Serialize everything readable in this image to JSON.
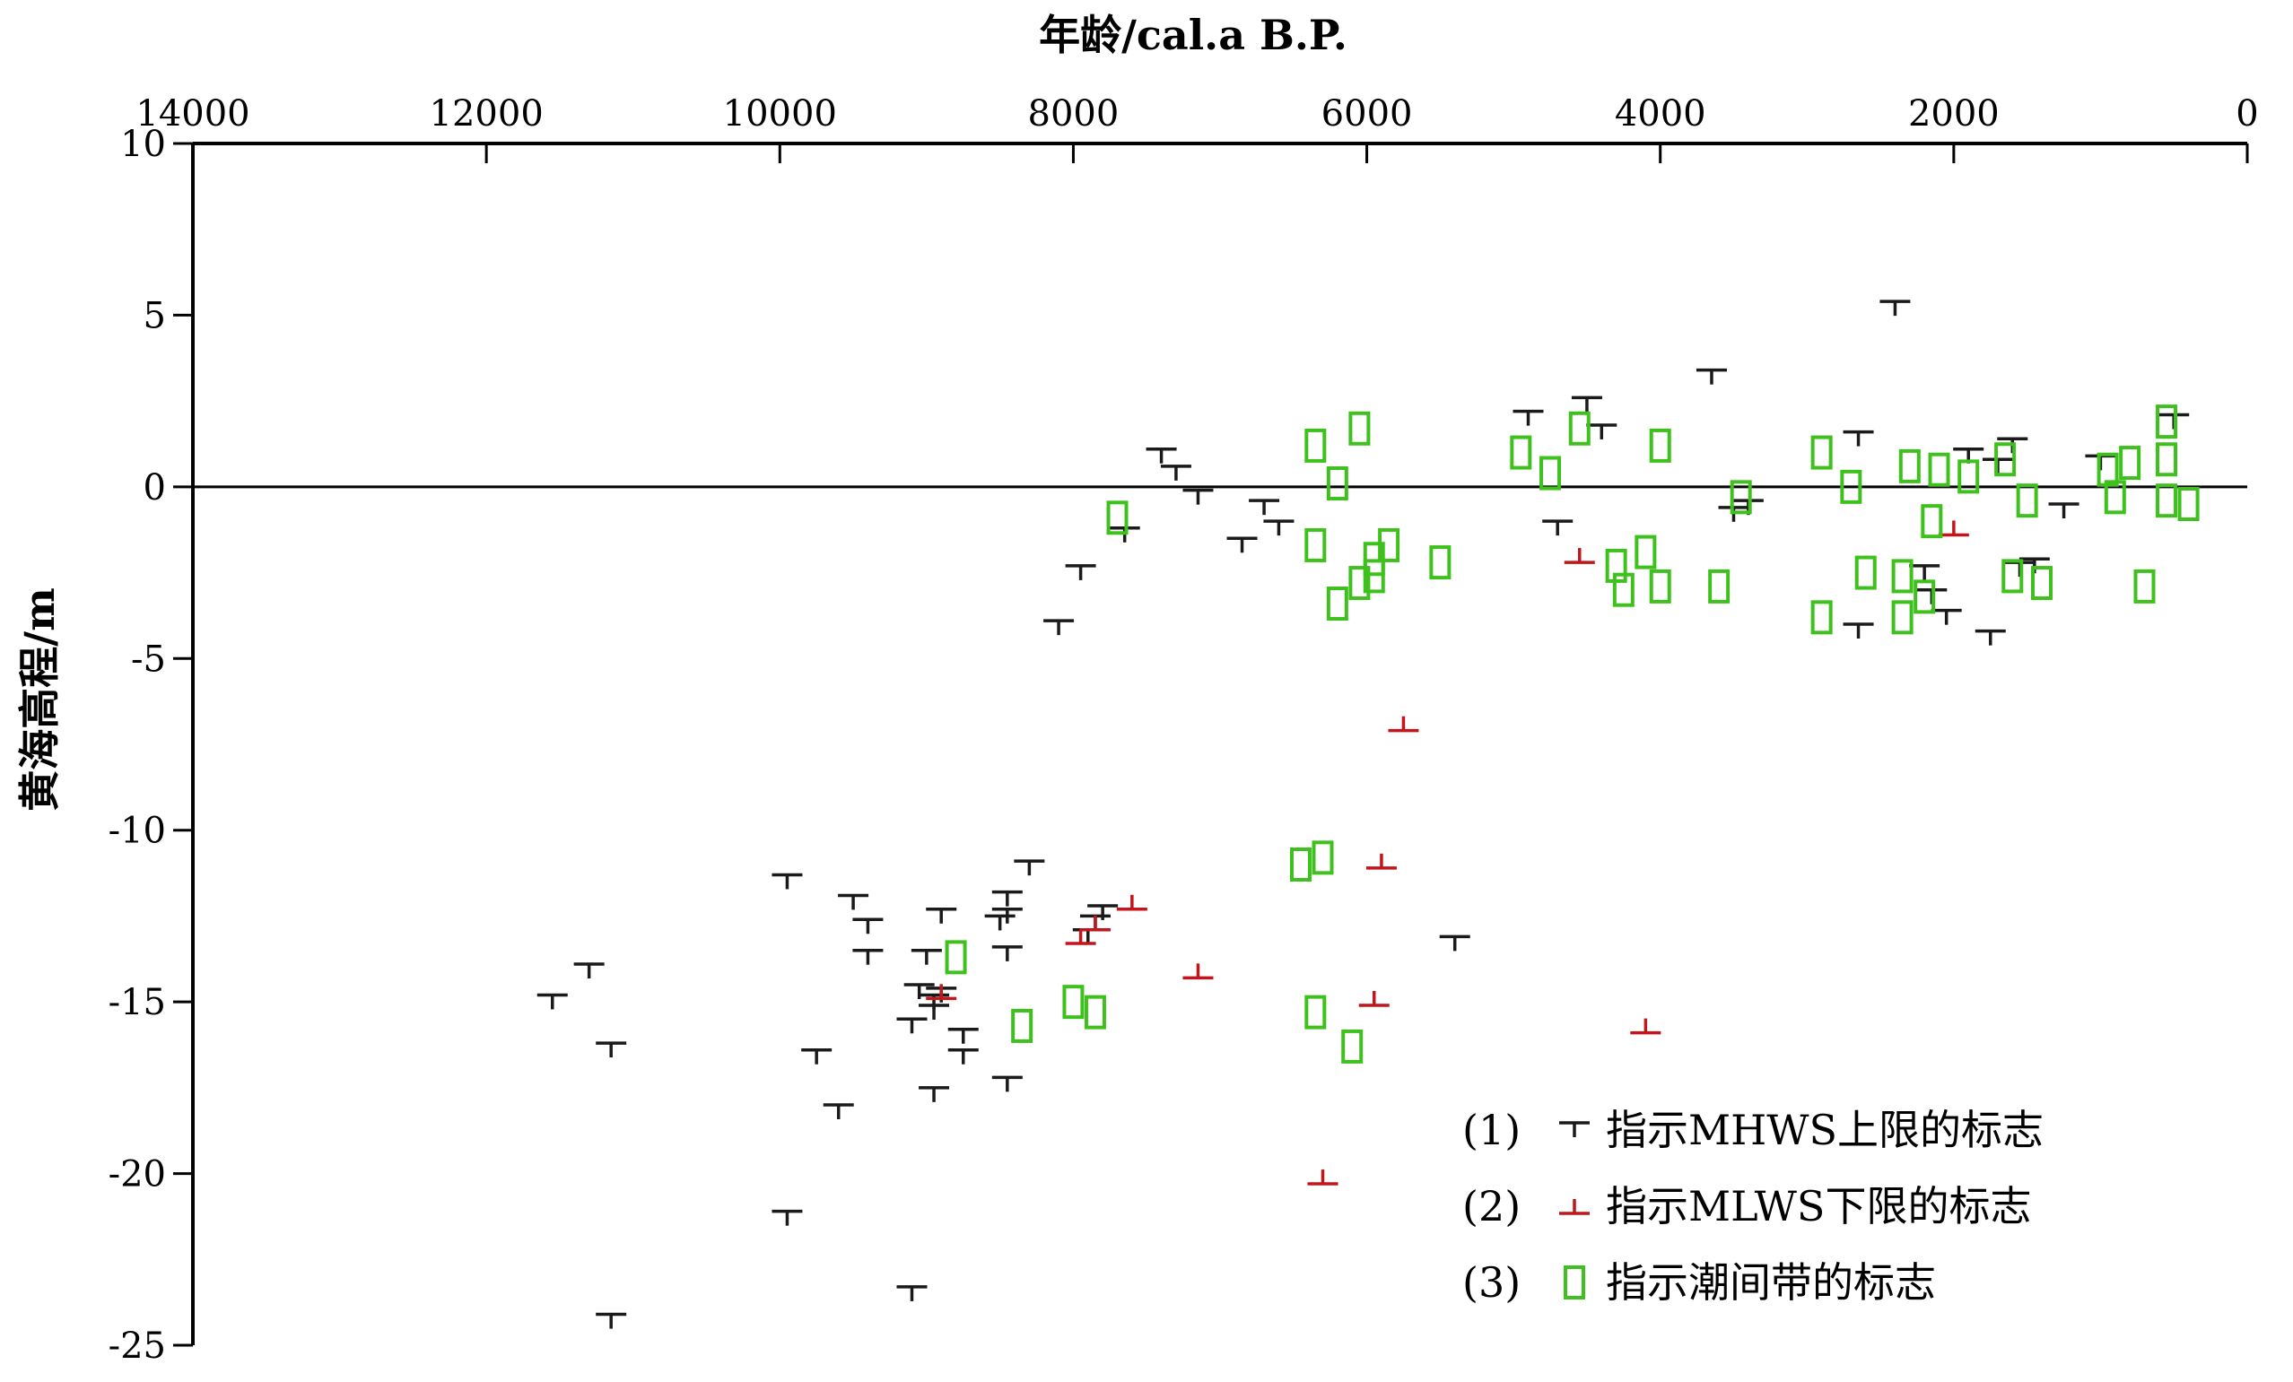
{
  "chart_data": {
    "type": "scatter",
    "xlabel": "年龄/cal.a B.P.",
    "ylabel": "黄海高程/m",
    "xlim": [
      14000,
      0
    ],
    "ylim": [
      -25,
      10
    ],
    "x_reversed": true,
    "x_axis_position": "top",
    "x_ticks": [
      "14000",
      "12000",
      "10000",
      "8000",
      "6000",
      "4000",
      "2000",
      "0"
    ],
    "y_ticks": [
      "10",
      "5",
      "0",
      "-5",
      "-10",
      "-15",
      "-20",
      "-25"
    ],
    "reference_line_y": 0,
    "legend_position": "bottom-right",
    "series": [
      {
        "name": "指示MHWS上限的标志",
        "label": "(1)",
        "marker": "T",
        "color": "#1a1a1a",
        "points": [
          [
            11550,
            -14.8
          ],
          [
            11300,
            -13.9
          ],
          [
            11150,
            -16.2
          ],
          [
            11150,
            -24.1
          ],
          [
            9950,
            -11.3
          ],
          [
            9950,
            -21.1
          ],
          [
            9750,
            -16.4
          ],
          [
            9600,
            -18.0
          ],
          [
            9500,
            -11.9
          ],
          [
            9400,
            -12.6
          ],
          [
            9400,
            -13.5
          ],
          [
            9100,
            -15.5
          ],
          [
            9100,
            -23.3
          ],
          [
            9050,
            -14.5
          ],
          [
            9000,
            -13.5
          ],
          [
            8950,
            -14.8
          ],
          [
            8950,
            -15.1
          ],
          [
            8950,
            -17.5
          ],
          [
            8900,
            -14.6
          ],
          [
            8900,
            -12.3
          ],
          [
            8750,
            -15.8
          ],
          [
            8750,
            -16.4
          ],
          [
            8500,
            -12.5
          ],
          [
            8450,
            -12.3
          ],
          [
            8450,
            -11.8
          ],
          [
            8450,
            -13.4
          ],
          [
            8450,
            -17.2
          ],
          [
            8300,
            -10.9
          ],
          [
            7900,
            -12.9
          ],
          [
            7850,
            -12.5
          ],
          [
            7800,
            -12.2
          ],
          [
            8100,
            -3.9
          ],
          [
            7950,
            -2.3
          ],
          [
            7650,
            -1.2
          ],
          [
            7400,
            1.1
          ],
          [
            7300,
            0.6
          ],
          [
            7150,
            -0.1
          ],
          [
            6850,
            -1.5
          ],
          [
            6700,
            -0.4
          ],
          [
            6600,
            -1.0
          ],
          [
            5400,
            -13.1
          ],
          [
            4900,
            2.2
          ],
          [
            4700,
            -1.0
          ],
          [
            4500,
            2.6
          ],
          [
            4400,
            1.8
          ],
          [
            3650,
            3.4
          ],
          [
            3500,
            -0.6
          ],
          [
            3400,
            -0.4
          ],
          [
            2650,
            1.6
          ],
          [
            2650,
            -4.0
          ],
          [
            2400,
            5.4
          ],
          [
            2200,
            -2.3
          ],
          [
            2150,
            -3.0
          ],
          [
            2050,
            -3.6
          ],
          [
            1900,
            1.1
          ],
          [
            1750,
            -4.2
          ],
          [
            1700,
            0.8
          ],
          [
            1600,
            1.4
          ],
          [
            1550,
            -2.2
          ],
          [
            1450,
            -2.1
          ],
          [
            1250,
            -0.5
          ],
          [
            1000,
            0.9
          ],
          [
            500,
            2.1
          ]
        ]
      },
      {
        "name": "指示MLWS下限的标志",
        "label": "(2)",
        "marker": "inverted-T",
        "color": "#c0161c",
        "points": [
          [
            8900,
            -14.9
          ],
          [
            7950,
            -13.3
          ],
          [
            7850,
            -12.9
          ],
          [
            7600,
            -12.3
          ],
          [
            7150,
            -14.3
          ],
          [
            6300,
            -20.3
          ],
          [
            5900,
            -11.1
          ],
          [
            5950,
            -15.1
          ],
          [
            5750,
            -7.1
          ],
          [
            4550,
            -2.2
          ],
          [
            4100,
            -15.9
          ],
          [
            2000,
            -1.4
          ]
        ]
      },
      {
        "name": "指示潮间带的标志",
        "label": "(3)",
        "marker": "hollow-rect",
        "color": "#3ec11d",
        "points": [
          [
            8800,
            -13.7
          ],
          [
            8350,
            -15.7
          ],
          [
            8000,
            -15.0
          ],
          [
            7850,
            -15.3
          ],
          [
            7700,
            -0.9
          ],
          [
            6450,
            -11.0
          ],
          [
            6300,
            -10.8
          ],
          [
            6350,
            -15.3
          ],
          [
            6100,
            -16.3
          ],
          [
            6350,
            1.2
          ],
          [
            6050,
            1.7
          ],
          [
            6200,
            0.1
          ],
          [
            6350,
            -1.7
          ],
          [
            5850,
            -1.7
          ],
          [
            5950,
            -2.1
          ],
          [
            5950,
            -2.6
          ],
          [
            6050,
            -2.8
          ],
          [
            6200,
            -3.4
          ],
          [
            5500,
            -2.2
          ],
          [
            4950,
            1.0
          ],
          [
            4750,
            0.4
          ],
          [
            4550,
            1.7
          ],
          [
            4300,
            -2.3
          ],
          [
            4250,
            -3.0
          ],
          [
            4100,
            -1.9
          ],
          [
            4000,
            -2.9
          ],
          [
            4000,
            1.2
          ],
          [
            3600,
            -2.9
          ],
          [
            3450,
            -0.3
          ],
          [
            2900,
            1.0
          ],
          [
            2900,
            -3.8
          ],
          [
            2700,
            0.0
          ],
          [
            2600,
            -2.5
          ],
          [
            2350,
            -2.6
          ],
          [
            2350,
            -3.8
          ],
          [
            2300,
            0.6
          ],
          [
            2200,
            -3.2
          ],
          [
            2150,
            -1.0
          ],
          [
            2100,
            0.5
          ],
          [
            1900,
            0.3
          ],
          [
            1650,
            0.8
          ],
          [
            1600,
            -2.6
          ],
          [
            1500,
            -0.4
          ],
          [
            1400,
            -2.8
          ],
          [
            950,
            0.5
          ],
          [
            900,
            -0.3
          ],
          [
            800,
            0.7
          ],
          [
            700,
            -2.9
          ],
          [
            550,
            1.9
          ],
          [
            550,
            0.8
          ],
          [
            550,
            -0.4
          ],
          [
            400,
            -0.5
          ]
        ]
      }
    ]
  }
}
